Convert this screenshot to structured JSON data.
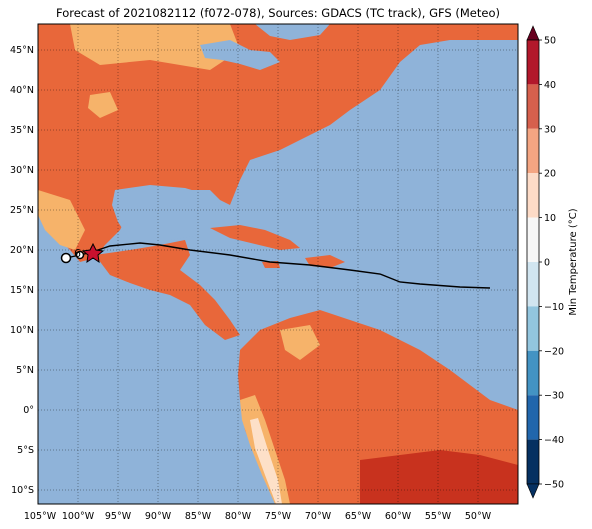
{
  "title": "Forecast of 2021082112 (f072-078), Sources: GDACS (TC track), GFS (Meteo)",
  "lon_ticks": [
    "105°W",
    "100°W",
    "95°W",
    "90°W",
    "85°W",
    "80°W",
    "75°W",
    "70°W",
    "65°W",
    "60°W",
    "55°W",
    "50°W"
  ],
  "lat_ticks": [
    "45°N",
    "40°N",
    "35°N",
    "30°N",
    "25°N",
    "20°N",
    "15°N",
    "10°N",
    "5°N",
    "0°",
    "5°S",
    "10°S"
  ],
  "colorbar": {
    "label": "Min Temperature (°C)",
    "ticks": [
      "50",
      "40",
      "30",
      "20",
      "10",
      "0",
      "−10",
      "−20",
      "−30",
      "−40",
      "−50"
    ],
    "colors": [
      "#b2182b",
      "#d6604d",
      "#f4a582",
      "#fddbc7",
      "#f7f7f7",
      "#d1e5f0",
      "#92c5de",
      "#4393c3",
      "#2166ac",
      "#053061"
    ]
  },
  "storm_symbols": {
    "current_position": "star",
    "forecast_points": "circle",
    "cyclone_symbol": "tropical-cyclone-icon"
  }
}
